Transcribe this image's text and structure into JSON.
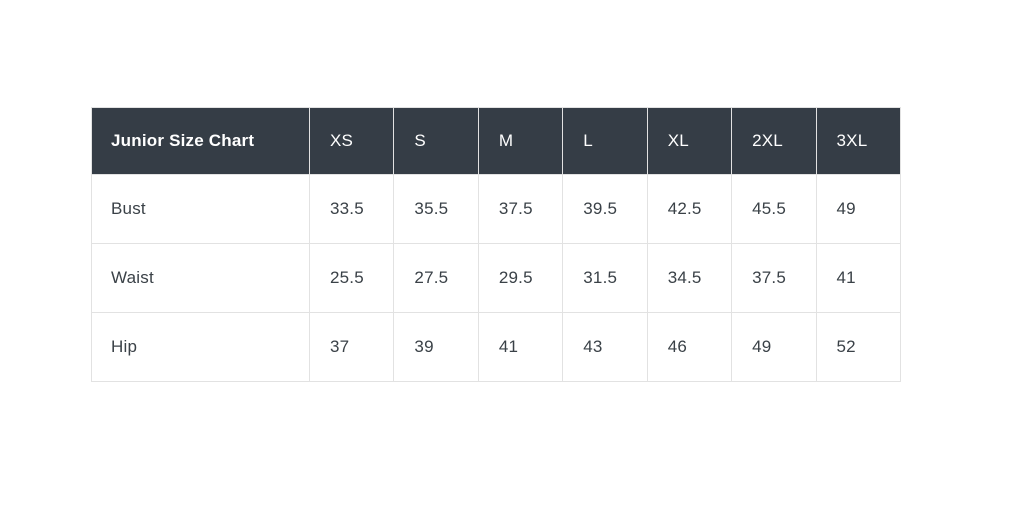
{
  "table": {
    "title": "Junior Size Chart",
    "columns": [
      "XS",
      "S",
      "M",
      "L",
      "XL",
      "2XL",
      "3XL"
    ],
    "rows": [
      {
        "label": "Bust",
        "values": [
          "33.5",
          "35.5",
          "37.5",
          "39.5",
          "42.5",
          "45.5",
          "49"
        ]
      },
      {
        "label": "Waist",
        "values": [
          "25.5",
          "27.5",
          "29.5",
          "31.5",
          "34.5",
          "37.5",
          "41"
        ]
      },
      {
        "label": "Hip",
        "values": [
          "37",
          "39",
          "41",
          "43",
          "46",
          "49",
          "52"
        ]
      }
    ]
  },
  "chart_data": {
    "type": "table",
    "title": "Junior Size Chart",
    "columns": [
      "XS",
      "S",
      "M",
      "L",
      "XL",
      "2XL",
      "3XL"
    ],
    "rows": [
      {
        "label": "Bust",
        "values": [
          33.5,
          35.5,
          37.5,
          39.5,
          42.5,
          45.5,
          49
        ]
      },
      {
        "label": "Waist",
        "values": [
          25.5,
          27.5,
          29.5,
          31.5,
          34.5,
          37.5,
          41
        ]
      },
      {
        "label": "Hip",
        "values": [
          37,
          39,
          41,
          43,
          46,
          49,
          52
        ]
      }
    ],
    "layout": {
      "header_position": "top",
      "grid": true,
      "striping": false
    }
  },
  "colors": {
    "page_bg": "#ffffff",
    "header_bg": "#353d46",
    "header_text": "#ffffff",
    "body_text": "#3a4147",
    "border": "#e2e2e2",
    "row_bg": "#ffffff"
  }
}
